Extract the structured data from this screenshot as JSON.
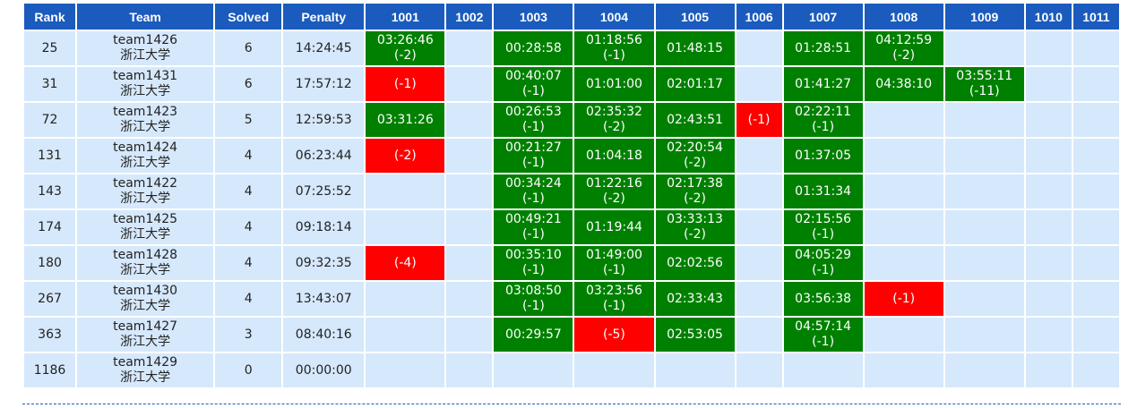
{
  "header": {
    "rank": "Rank",
    "team": "Team",
    "solved": "Solved",
    "penalty": "Penalty",
    "problems": [
      "1001",
      "1002",
      "1003",
      "1004",
      "1005",
      "1006",
      "1007",
      "1008",
      "1009",
      "1010",
      "1011"
    ]
  },
  "colors": {
    "header_bg": "#1a5bbd",
    "row_bg": "#d6e8fb",
    "accepted": "#008000",
    "rejected": "#ff0000"
  },
  "rows": [
    {
      "rank": "25",
      "team": "team1426",
      "school": "浙江大学",
      "solved": "6",
      "penalty": "14:24:45",
      "cells": [
        {
          "s": "ac",
          "t": "03:26:46",
          "a": "(-2)"
        },
        {
          "s": "none"
        },
        {
          "s": "ac",
          "t": "00:28:58"
        },
        {
          "s": "ac",
          "t": "01:18:56",
          "a": "(-1)"
        },
        {
          "s": "ac",
          "t": "01:48:15"
        },
        {
          "s": "none"
        },
        {
          "s": "ac",
          "t": "01:28:51"
        },
        {
          "s": "ac",
          "t": "04:12:59",
          "a": "(-2)"
        },
        {
          "s": "none"
        },
        {
          "s": "none"
        },
        {
          "s": "none"
        }
      ]
    },
    {
      "rank": "31",
      "team": "team1431",
      "school": "浙江大学",
      "solved": "6",
      "penalty": "17:57:12",
      "cells": [
        {
          "s": "wa",
          "a": "(-1)"
        },
        {
          "s": "none"
        },
        {
          "s": "ac",
          "t": "00:40:07",
          "a": "(-1)"
        },
        {
          "s": "ac",
          "t": "01:01:00"
        },
        {
          "s": "ac",
          "t": "02:01:17"
        },
        {
          "s": "none"
        },
        {
          "s": "ac",
          "t": "01:41:27"
        },
        {
          "s": "ac",
          "t": "04:38:10"
        },
        {
          "s": "ac",
          "t": "03:55:11",
          "a": "(-11)"
        },
        {
          "s": "none"
        },
        {
          "s": "none"
        }
      ]
    },
    {
      "rank": "72",
      "team": "team1423",
      "school": "浙江大学",
      "solved": "5",
      "penalty": "12:59:53",
      "cells": [
        {
          "s": "ac",
          "t": "03:31:26"
        },
        {
          "s": "none"
        },
        {
          "s": "ac",
          "t": "00:26:53",
          "a": "(-1)"
        },
        {
          "s": "ac",
          "t": "02:35:32",
          "a": "(-2)"
        },
        {
          "s": "ac",
          "t": "02:43:51"
        },
        {
          "s": "wa",
          "a": "(-1)"
        },
        {
          "s": "ac",
          "t": "02:22:11",
          "a": "(-1)"
        },
        {
          "s": "none"
        },
        {
          "s": "none"
        },
        {
          "s": "none"
        },
        {
          "s": "none"
        }
      ]
    },
    {
      "rank": "131",
      "team": "team1424",
      "school": "浙江大学",
      "solved": "4",
      "penalty": "06:23:44",
      "cells": [
        {
          "s": "wa",
          "a": "(-2)"
        },
        {
          "s": "none"
        },
        {
          "s": "ac",
          "t": "00:21:27",
          "a": "(-1)"
        },
        {
          "s": "ac",
          "t": "01:04:18"
        },
        {
          "s": "ac",
          "t": "02:20:54",
          "a": "(-2)"
        },
        {
          "s": "none"
        },
        {
          "s": "ac",
          "t": "01:37:05"
        },
        {
          "s": "none"
        },
        {
          "s": "none"
        },
        {
          "s": "none"
        },
        {
          "s": "none"
        }
      ]
    },
    {
      "rank": "143",
      "team": "team1422",
      "school": "浙江大学",
      "solved": "4",
      "penalty": "07:25:52",
      "cells": [
        {
          "s": "none"
        },
        {
          "s": "none"
        },
        {
          "s": "ac",
          "t": "00:34:24",
          "a": "(-1)"
        },
        {
          "s": "ac",
          "t": "01:22:16",
          "a": "(-2)"
        },
        {
          "s": "ac",
          "t": "02:17:38",
          "a": "(-2)"
        },
        {
          "s": "none"
        },
        {
          "s": "ac",
          "t": "01:31:34"
        },
        {
          "s": "none"
        },
        {
          "s": "none"
        },
        {
          "s": "none"
        },
        {
          "s": "none"
        }
      ]
    },
    {
      "rank": "174",
      "team": "team1425",
      "school": "浙江大学",
      "solved": "4",
      "penalty": "09:18:14",
      "cells": [
        {
          "s": "none"
        },
        {
          "s": "none"
        },
        {
          "s": "ac",
          "t": "00:49:21",
          "a": "(-1)"
        },
        {
          "s": "ac",
          "t": "01:19:44"
        },
        {
          "s": "ac",
          "t": "03:33:13",
          "a": "(-2)"
        },
        {
          "s": "none"
        },
        {
          "s": "ac",
          "t": "02:15:56",
          "a": "(-1)"
        },
        {
          "s": "none"
        },
        {
          "s": "none"
        },
        {
          "s": "none"
        },
        {
          "s": "none"
        }
      ]
    },
    {
      "rank": "180",
      "team": "team1428",
      "school": "浙江大学",
      "solved": "4",
      "penalty": "09:32:35",
      "cells": [
        {
          "s": "wa",
          "a": "(-4)"
        },
        {
          "s": "none"
        },
        {
          "s": "ac",
          "t": "00:35:10",
          "a": "(-1)"
        },
        {
          "s": "ac",
          "t": "01:49:00",
          "a": "(-1)"
        },
        {
          "s": "ac",
          "t": "02:02:56"
        },
        {
          "s": "none"
        },
        {
          "s": "ac",
          "t": "04:05:29",
          "a": "(-1)"
        },
        {
          "s": "none"
        },
        {
          "s": "none"
        },
        {
          "s": "none"
        },
        {
          "s": "none"
        }
      ]
    },
    {
      "rank": "267",
      "team": "team1430",
      "school": "浙江大学",
      "solved": "4",
      "penalty": "13:43:07",
      "cells": [
        {
          "s": "none"
        },
        {
          "s": "none"
        },
        {
          "s": "ac",
          "t": "03:08:50",
          "a": "(-1)"
        },
        {
          "s": "ac",
          "t": "03:23:56",
          "a": "(-1)"
        },
        {
          "s": "ac",
          "t": "02:33:43"
        },
        {
          "s": "none"
        },
        {
          "s": "ac",
          "t": "03:56:38"
        },
        {
          "s": "wa",
          "a": "(-1)"
        },
        {
          "s": "none"
        },
        {
          "s": "none"
        },
        {
          "s": "none"
        }
      ]
    },
    {
      "rank": "363",
      "team": "team1427",
      "school": "浙江大学",
      "solved": "3",
      "penalty": "08:40:16",
      "cells": [
        {
          "s": "none"
        },
        {
          "s": "none"
        },
        {
          "s": "ac",
          "t": "00:29:57"
        },
        {
          "s": "wa",
          "a": "(-5)"
        },
        {
          "s": "ac",
          "t": "02:53:05"
        },
        {
          "s": "none"
        },
        {
          "s": "ac",
          "t": "04:57:14",
          "a": "(-1)"
        },
        {
          "s": "none"
        },
        {
          "s": "none"
        },
        {
          "s": "none"
        },
        {
          "s": "none"
        }
      ]
    },
    {
      "rank": "1186",
      "team": "team1429",
      "school": "浙江大学",
      "solved": "0",
      "penalty": "00:00:00",
      "cells": [
        {
          "s": "none"
        },
        {
          "s": "none"
        },
        {
          "s": "none"
        },
        {
          "s": "none"
        },
        {
          "s": "none"
        },
        {
          "s": "none"
        },
        {
          "s": "none"
        },
        {
          "s": "none"
        },
        {
          "s": "none"
        },
        {
          "s": "none"
        },
        {
          "s": "none"
        }
      ]
    }
  ]
}
